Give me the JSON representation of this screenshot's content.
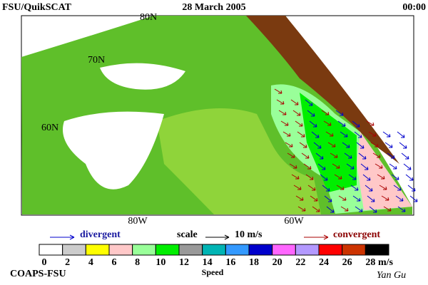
{
  "header": {
    "left": "FSU/QuikSCAT",
    "center": "28 March 2005",
    "right": "00:00"
  },
  "map": {
    "lat_labels": [
      "80N",
      "70N",
      "60N"
    ],
    "lon_labels": [
      "80W",
      "60W"
    ]
  },
  "legend": {
    "divergent": "divergent",
    "scale": "scale",
    "scale_value": "10 m/s",
    "convergent": "convergent"
  },
  "colorbar": {
    "colors": [
      "#ffffff",
      "#cccccc",
      "#ffff00",
      "#ffc8c8",
      "#99ff99",
      "#00ee00",
      "#999999",
      "#00b4b4",
      "#3399ff",
      "#0000cc",
      "#ff66ff",
      "#b399ff",
      "#ff0000",
      "#cc3300",
      "#000000"
    ],
    "ticks": [
      0,
      2,
      4,
      6,
      8,
      10,
      12,
      14,
      16,
      18,
      20,
      22,
      24,
      26,
      28
    ],
    "unit": "m/s",
    "label": "Speed"
  },
  "footer": {
    "left": "COAPS-FSU",
    "right": "Yan Gu"
  }
}
